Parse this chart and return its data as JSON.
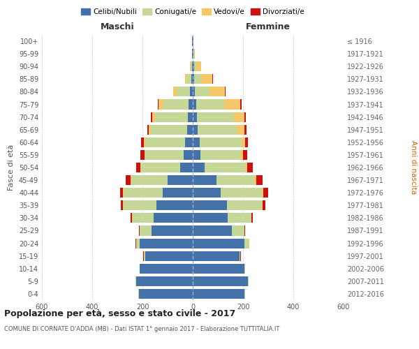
{
  "age_groups": [
    "0-4",
    "5-9",
    "10-14",
    "15-19",
    "20-24",
    "25-29",
    "30-34",
    "35-39",
    "40-44",
    "45-49",
    "50-54",
    "55-59",
    "60-64",
    "65-69",
    "70-74",
    "75-79",
    "80-84",
    "85-89",
    "90-94",
    "95-99",
    "100+"
  ],
  "birth_years": [
    "2012-2016",
    "2007-2011",
    "2002-2006",
    "1997-2001",
    "1992-1996",
    "1987-1991",
    "1982-1986",
    "1977-1981",
    "1972-1976",
    "1967-1971",
    "1962-1966",
    "1957-1961",
    "1952-1956",
    "1947-1951",
    "1942-1946",
    "1937-1941",
    "1932-1936",
    "1927-1931",
    "1922-1926",
    "1917-1921",
    "≤ 1916"
  ],
  "maschi": {
    "celibi": [
      215,
      225,
      210,
      190,
      210,
      165,
      155,
      145,
      120,
      100,
      50,
      35,
      30,
      22,
      20,
      18,
      10,
      5,
      3,
      2,
      2
    ],
    "coniugati": [
      2,
      2,
      2,
      5,
      15,
      45,
      85,
      130,
      155,
      145,
      155,
      155,
      160,
      145,
      130,
      100,
      55,
      18,
      5,
      2,
      1
    ],
    "vedovi": [
      0,
      0,
      0,
      0,
      1,
      1,
      1,
      2,
      2,
      2,
      2,
      3,
      5,
      8,
      12,
      18,
      12,
      8,
      3,
      0,
      0
    ],
    "divorziati": [
      0,
      0,
      0,
      1,
      2,
      3,
      5,
      8,
      12,
      20,
      18,
      15,
      10,
      5,
      4,
      3,
      2,
      0,
      0,
      0,
      0
    ]
  },
  "femmine": {
    "nubili": [
      205,
      220,
      205,
      185,
      205,
      155,
      140,
      135,
      110,
      95,
      48,
      30,
      28,
      20,
      18,
      15,
      8,
      5,
      5,
      2,
      2
    ],
    "coniugate": [
      2,
      2,
      2,
      5,
      18,
      50,
      92,
      140,
      165,
      150,
      160,
      160,
      165,
      155,
      145,
      110,
      60,
      28,
      10,
      3,
      1
    ],
    "vedove": [
      0,
      0,
      0,
      0,
      1,
      1,
      2,
      3,
      5,
      8,
      8,
      10,
      15,
      30,
      42,
      65,
      60,
      45,
      18,
      2,
      0
    ],
    "divorziate": [
      0,
      0,
      0,
      1,
      2,
      3,
      6,
      10,
      20,
      25,
      22,
      18,
      12,
      8,
      5,
      5,
      3,
      2,
      0,
      0,
      0
    ]
  },
  "colors": {
    "celibi": "#4472a8",
    "coniugati": "#c5d898",
    "vedovi": "#f5c96a",
    "divorziati": "#cc1111"
  },
  "title": "Popolazione per età, sesso e stato civile - 2017",
  "subtitle": "COMUNE DI CORNATE D'ADDA (MB) - Dati ISTAT 1° gennaio 2017 - Elaborazione TUTTITALIA.IT",
  "xlabel_left": "Maschi",
  "xlabel_right": "Femmine",
  "ylabel_left": "Fasce di età",
  "ylabel_right": "Anni di nascita",
  "xlim": 600,
  "bg_color": "#ffffff",
  "grid_color": "#cccccc"
}
